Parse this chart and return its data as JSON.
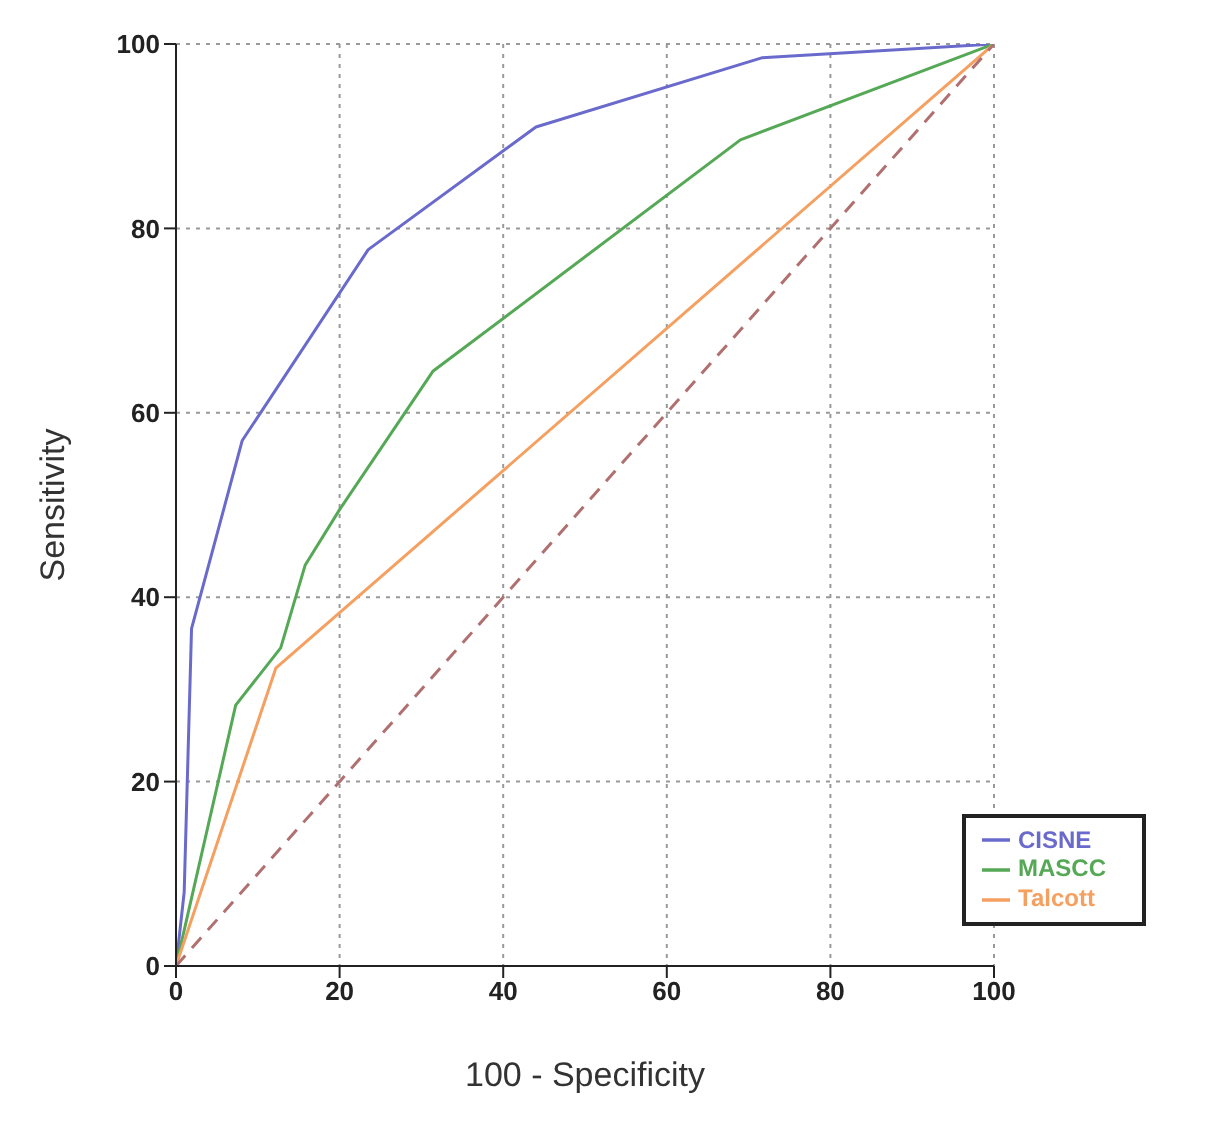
{
  "chart_data": {
    "type": "line",
    "xlabel": "100 - Specificity",
    "ylabel": "Sensitivity",
    "series": [
      {
        "name": "CISNE",
        "color": "#6a6acc",
        "x": [
          0,
          1,
          1.9,
          8.1,
          23.5,
          44,
          71.6,
          100
        ],
        "values": [
          0,
          8,
          36.6,
          57,
          77.7,
          91,
          98.5,
          100
        ]
      },
      {
        "name": "MASCC",
        "color": "#55a855",
        "x": [
          0,
          7.3,
          12.8,
          15.8,
          20,
          31.4,
          69,
          100
        ],
        "values": [
          0,
          28.3,
          34.5,
          43.5,
          49.5,
          64.5,
          89.6,
          100
        ]
      },
      {
        "name": "Talcott",
        "color": "#f5a060",
        "x": [
          0,
          12.2,
          100
        ],
        "values": [
          0,
          32.3,
          100
        ]
      },
      {
        "type": "line",
        "color": "#b07070",
        "line_style": "dashed",
        "x": [
          0,
          100
        ],
        "values": [
          0,
          100
        ]
      }
    ],
    "xlim": [
      0,
      100
    ],
    "ylim": [
      0,
      100
    ],
    "xticks": [
      0,
      20,
      40,
      60,
      80,
      100
    ],
    "yticks": [
      0,
      20,
      40,
      60,
      80,
      100
    ],
    "grid": true,
    "legend": "bottom right",
    "marker": "none",
    "line_style": "solid"
  }
}
